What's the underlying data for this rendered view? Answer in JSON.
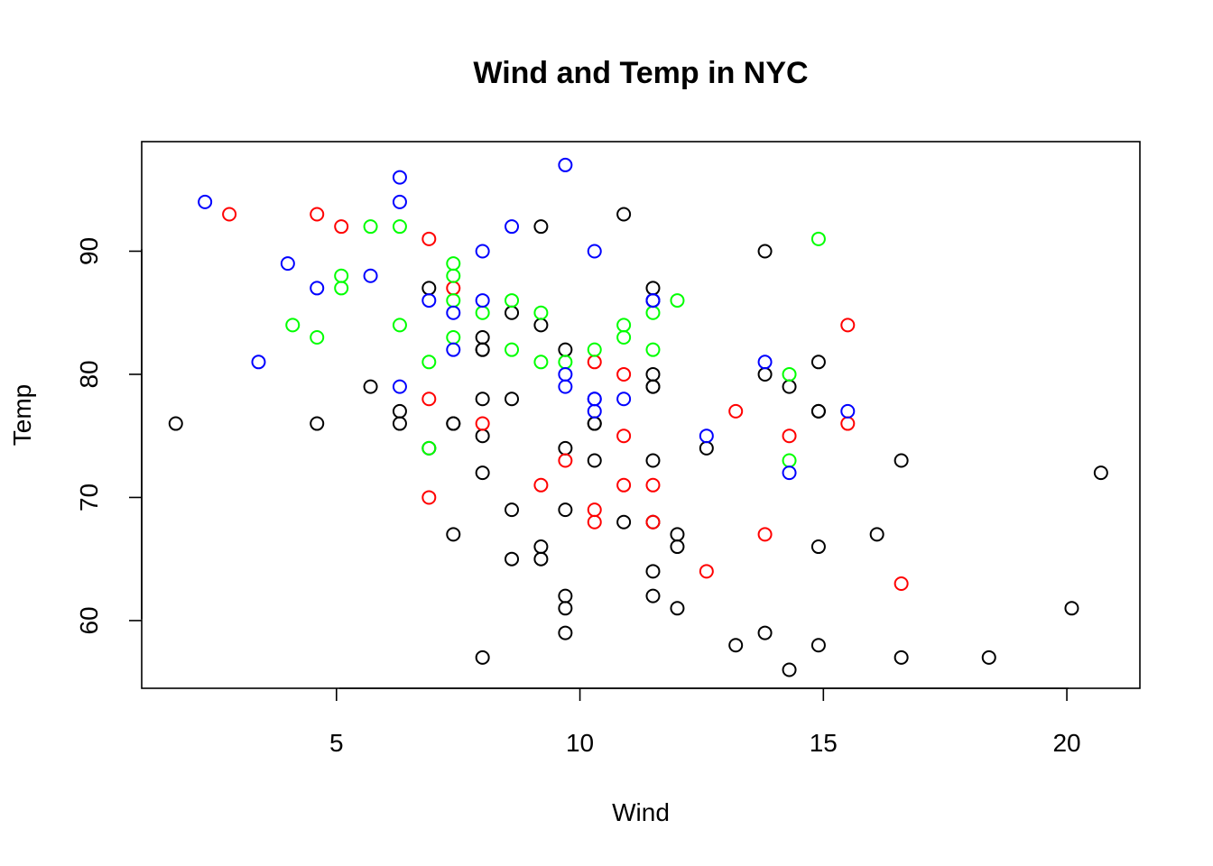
{
  "chart_data": {
    "type": "scatter",
    "title": "Wind and Temp in NYC",
    "xlabel": "Wind",
    "ylabel": "Temp",
    "xlim": [
      1.0,
      21.5
    ],
    "ylim": [
      54.5,
      98.9
    ],
    "xticks": [
      5,
      10,
      15,
      20
    ],
    "yticks": [
      60,
      70,
      80,
      90
    ],
    "grid": false,
    "legend": "none",
    "marker": "open-circle",
    "series": [
      {
        "color": "#000000",
        "points": [
          [
            1.7,
            76
          ],
          [
            4.6,
            76
          ],
          [
            5.7,
            79
          ],
          [
            6.3,
            77
          ],
          [
            6.3,
            76
          ],
          [
            6.9,
            87
          ],
          [
            6.9,
            74
          ],
          [
            7.4,
            76
          ],
          [
            7.4,
            76
          ],
          [
            7.4,
            67
          ],
          [
            8.0,
            83
          ],
          [
            8.0,
            82
          ],
          [
            8.0,
            82
          ],
          [
            8.0,
            78
          ],
          [
            8.0,
            75
          ],
          [
            8.0,
            72
          ],
          [
            8.0,
            57
          ],
          [
            8.6,
            85
          ],
          [
            8.6,
            78
          ],
          [
            8.6,
            69
          ],
          [
            8.6,
            65
          ],
          [
            9.2,
            92
          ],
          [
            9.2,
            84
          ],
          [
            9.2,
            66
          ],
          [
            9.2,
            65
          ],
          [
            9.7,
            82
          ],
          [
            9.7,
            74
          ],
          [
            9.7,
            69
          ],
          [
            9.7,
            62
          ],
          [
            9.7,
            61
          ],
          [
            9.7,
            59
          ],
          [
            10.3,
            76
          ],
          [
            10.3,
            76
          ],
          [
            10.3,
            73
          ],
          [
            10.9,
            93
          ],
          [
            10.9,
            68
          ],
          [
            11.5,
            87
          ],
          [
            11.5,
            86
          ],
          [
            11.5,
            80
          ],
          [
            11.5,
            79
          ],
          [
            11.5,
            79
          ],
          [
            11.5,
            73
          ],
          [
            11.5,
            68
          ],
          [
            11.5,
            64
          ],
          [
            11.5,
            62
          ],
          [
            12.0,
            67
          ],
          [
            12.0,
            66
          ],
          [
            12.0,
            61
          ],
          [
            12.6,
            74
          ],
          [
            13.2,
            58
          ],
          [
            13.8,
            90
          ],
          [
            13.8,
            80
          ],
          [
            13.8,
            59
          ],
          [
            14.3,
            79
          ],
          [
            14.3,
            56
          ],
          [
            14.9,
            81
          ],
          [
            14.9,
            77
          ],
          [
            14.9,
            77
          ],
          [
            14.9,
            66
          ],
          [
            14.9,
            58
          ],
          [
            16.1,
            67
          ],
          [
            16.6,
            73
          ],
          [
            16.6,
            57
          ],
          [
            18.4,
            57
          ],
          [
            20.1,
            61
          ],
          [
            20.7,
            72
          ]
        ]
      },
      {
        "color": "#ff0000",
        "points": [
          [
            2.8,
            93
          ],
          [
            4.6,
            93
          ],
          [
            5.1,
            92
          ],
          [
            6.9,
            91
          ],
          [
            6.9,
            78
          ],
          [
            6.9,
            70
          ],
          [
            7.4,
            87
          ],
          [
            8.0,
            76
          ],
          [
            9.2,
            71
          ],
          [
            9.7,
            73
          ],
          [
            10.3,
            81
          ],
          [
            10.3,
            69
          ],
          [
            10.3,
            68
          ],
          [
            10.9,
            80
          ],
          [
            10.9,
            75
          ],
          [
            10.9,
            71
          ],
          [
            11.5,
            71
          ],
          [
            11.5,
            68
          ],
          [
            12.6,
            64
          ],
          [
            13.2,
            77
          ],
          [
            13.8,
            67
          ],
          [
            14.3,
            75
          ],
          [
            15.5,
            84
          ],
          [
            15.5,
            76
          ],
          [
            16.6,
            63
          ]
        ]
      },
      {
        "color": "#00ff00",
        "points": [
          [
            4.1,
            84
          ],
          [
            4.6,
            83
          ],
          [
            5.1,
            88
          ],
          [
            5.1,
            87
          ],
          [
            5.7,
            92
          ],
          [
            6.3,
            92
          ],
          [
            6.3,
            84
          ],
          [
            6.9,
            81
          ],
          [
            6.9,
            74
          ],
          [
            7.4,
            89
          ],
          [
            7.4,
            88
          ],
          [
            7.4,
            86
          ],
          [
            7.4,
            83
          ],
          [
            8.0,
            85
          ],
          [
            8.6,
            86
          ],
          [
            8.6,
            82
          ],
          [
            9.2,
            85
          ],
          [
            9.2,
            81
          ],
          [
            9.7,
            81
          ],
          [
            10.3,
            82
          ],
          [
            10.9,
            84
          ],
          [
            10.9,
            83
          ],
          [
            11.5,
            85
          ],
          [
            11.5,
            82
          ],
          [
            12.0,
            86
          ],
          [
            14.3,
            80
          ],
          [
            14.3,
            73
          ],
          [
            14.9,
            91
          ]
        ]
      },
      {
        "color": "#0000ff",
        "points": [
          [
            2.3,
            94
          ],
          [
            3.4,
            81
          ],
          [
            4.0,
            89
          ],
          [
            4.6,
            87
          ],
          [
            5.7,
            88
          ],
          [
            6.3,
            96
          ],
          [
            6.3,
            94
          ],
          [
            6.3,
            79
          ],
          [
            6.9,
            86
          ],
          [
            7.4,
            85
          ],
          [
            7.4,
            82
          ],
          [
            8.0,
            90
          ],
          [
            8.0,
            86
          ],
          [
            8.6,
            92
          ],
          [
            9.7,
            97
          ],
          [
            9.7,
            80
          ],
          [
            9.7,
            79
          ],
          [
            10.3,
            90
          ],
          [
            10.3,
            78
          ],
          [
            10.3,
            78
          ],
          [
            10.3,
            77
          ],
          [
            10.9,
            78
          ],
          [
            11.5,
            86
          ],
          [
            11.5,
            86
          ],
          [
            12.6,
            75
          ],
          [
            13.8,
            81
          ],
          [
            14.3,
            72
          ],
          [
            15.5,
            77
          ]
        ]
      }
    ]
  }
}
